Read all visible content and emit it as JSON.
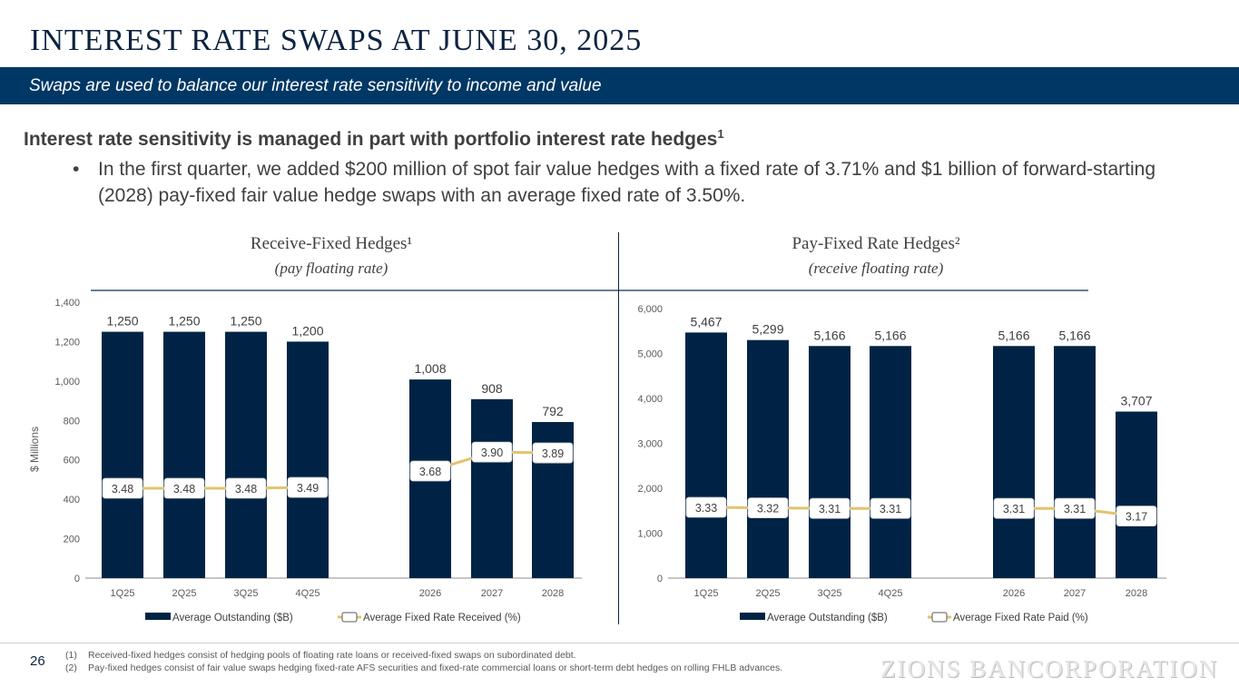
{
  "header": {
    "title": "INTEREST RATE SWAPS AT JUNE 30, 2025",
    "banner": "Swaps are used to balance our interest rate sensitivity to income and value"
  },
  "intro": {
    "heading": "Interest rate sensitivity is managed in part with portfolio interest rate hedges",
    "heading_sup": "1",
    "bullet_symbol": "•",
    "bullet": "In the first quarter, we added $200 million of spot fair value hedges with a fixed rate of 3.71% and $1 billion of forward-starting (2028) pay-fixed fair value hedge swaps with an average fixed rate of 3.50%."
  },
  "chart_data": [
    {
      "type": "bar",
      "title": "Receive-Fixed Hedges¹",
      "subtitle": "(pay floating rate)",
      "ylabel": "$ Millions",
      "xlabel": "",
      "ylim": [
        0,
        1400
      ],
      "yticks": [
        0,
        200,
        400,
        600,
        800,
        1000,
        1200,
        1400
      ],
      "ytick_labels": [
        "0",
        "200",
        "400",
        "600",
        "800",
        "1,000",
        "1,200",
        "1,400"
      ],
      "categories": [
        "1Q25",
        "2Q25",
        "3Q25",
        "4Q25",
        "2026",
        "2027",
        "2028"
      ],
      "grid": false,
      "legend_position": "bottom",
      "series": [
        {
          "name": "Average Outstanding ($B)",
          "type": "bar",
          "color": "#002345",
          "values": [
            1250,
            1250,
            1250,
            1200,
            1008,
            908,
            792
          ],
          "labels": [
            "1,250",
            "1,250",
            "1,250",
            "1,200",
            "1,008",
            "908",
            "792"
          ]
        },
        {
          "name": "Average Fixed Rate Received (%)",
          "type": "line",
          "color": "#e2c46c",
          "values": [
            3.48,
            3.48,
            3.48,
            3.49,
            3.68,
            3.9,
            3.89
          ],
          "labels": [
            "3.48",
            "3.48",
            "3.48",
            "3.49",
            "3.68",
            "3.90",
            "3.89"
          ]
        }
      ]
    },
    {
      "type": "bar",
      "title": "Pay-Fixed Rate Hedges²",
      "subtitle": "(receive floating rate)",
      "ylabel": "",
      "xlabel": "",
      "ylim": [
        0,
        6000
      ],
      "yticks": [
        0,
        1000,
        2000,
        3000,
        4000,
        5000,
        6000
      ],
      "ytick_labels": [
        "0",
        "1,000",
        "2,000",
        "3,000",
        "4,000",
        "5,000",
        "6,000"
      ],
      "categories": [
        "1Q25",
        "2Q25",
        "3Q25",
        "4Q25",
        "2026",
        "2027",
        "2028"
      ],
      "grid": false,
      "legend_position": "bottom",
      "series": [
        {
          "name": "Average Outstanding ($B)",
          "type": "bar",
          "color": "#002345",
          "values": [
            5467,
            5299,
            5166,
            5166,
            5166,
            5166,
            3707
          ],
          "labels": [
            "5,467",
            "5,299",
            "5,166",
            "5,166",
            "5,166",
            "5,166",
            "3,707"
          ]
        },
        {
          "name": "Average Fixed Rate Paid (%)",
          "type": "line",
          "color": "#e2c46c",
          "values": [
            3.33,
            3.32,
            3.31,
            3.31,
            3.31,
            3.31,
            3.17
          ],
          "labels": [
            "3.33",
            "3.32",
            "3.31",
            "3.31",
            "3.31",
            "3.31",
            "3.17"
          ]
        }
      ]
    }
  ],
  "footer": {
    "page_number": "26",
    "footnotes": [
      {
        "num": "(1)",
        "text": "Received-fixed hedges consist of hedging pools of floating rate loans or received-fixed swaps on subordinated debt."
      },
      {
        "num": "(2)",
        "text": "Pay-fixed hedges consist of fair value swaps hedging fixed-rate AFS securities and fixed-rate commercial loans or short-term debt hedges on rolling FHLB advances."
      }
    ],
    "logo": "ZIONS BANCORPORATION"
  }
}
